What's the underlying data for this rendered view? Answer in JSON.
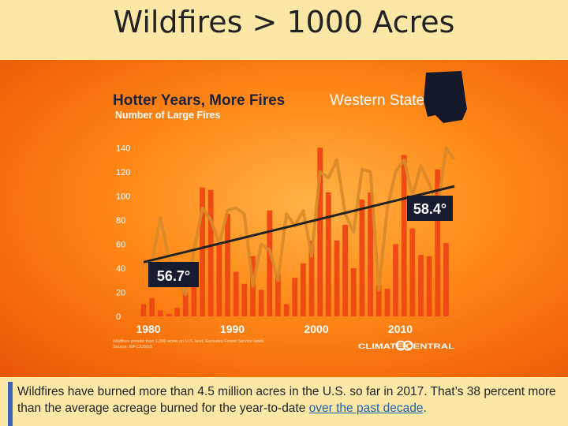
{
  "slide": {
    "title": "Wildfires > 1000 Acres"
  },
  "caption": {
    "text_before": "Wildfires have burned more than 4.5 million acres in the U.S. so far in 2017. That’s 38 percent more than the average acreage burned for the year-to-date ",
    "link_text": "over the past decade",
    "text_after": "."
  },
  "chart_data": {
    "type": "bar",
    "title": "Hotter Years, More Fires",
    "region": "Western States",
    "ylabel": "Number of Large Fires",
    "x": [
      1980,
      1981,
      1982,
      1983,
      1984,
      1985,
      1986,
      1987,
      1988,
      1989,
      1990,
      1991,
      1992,
      1993,
      1994,
      1995,
      1996,
      1997,
      1998,
      1999,
      2000,
      2001,
      2002,
      2003,
      2004,
      2005,
      2006,
      2007,
      2008,
      2009,
      2010,
      2011,
      2012,
      2013,
      2014,
      2015,
      2016,
      2017
    ],
    "values": [
      10,
      15,
      5,
      2,
      7,
      20,
      45,
      107,
      105,
      60,
      85,
      37,
      27,
      50,
      22,
      88,
      35,
      10,
      32,
      44,
      63,
      140,
      103,
      63,
      76,
      40,
      97,
      103,
      26,
      23,
      60,
      134,
      73,
      51,
      50,
      122,
      61,
      0
    ],
    "xticks": [
      "1980",
      "1990",
      "2000",
      "2010"
    ],
    "yticks": [
      "0",
      "20",
      "40",
      "60",
      "80",
      "100",
      "120",
      "140"
    ],
    "ylim": [
      0,
      150
    ],
    "temperature_series": [
      42,
      45,
      82,
      48,
      30,
      18,
      55,
      90,
      80,
      60,
      88,
      90,
      85,
      25,
      60,
      55,
      30,
      85,
      75,
      88,
      50,
      120,
      115,
      130,
      85,
      70,
      122,
      120,
      22,
      90,
      120,
      130,
      100,
      125,
      110,
      90,
      140,
      130
    ],
    "trend_line": {
      "start_value": 45,
      "end_value": 108
    },
    "annotations": [
      "56.7°",
      "58.4°"
    ],
    "footnote": [
      "Wildfires greater than 1,000 acres on U.S. land. Excludes Forest Service lands.",
      "Source: NIFC/USGS"
    ],
    "credit": "CLIMATE CENTRAL",
    "colors": {
      "bar": "#f04a14",
      "temp_line": "#d98a2a",
      "trend": "#222222",
      "label_bg": "#161b30"
    }
  }
}
